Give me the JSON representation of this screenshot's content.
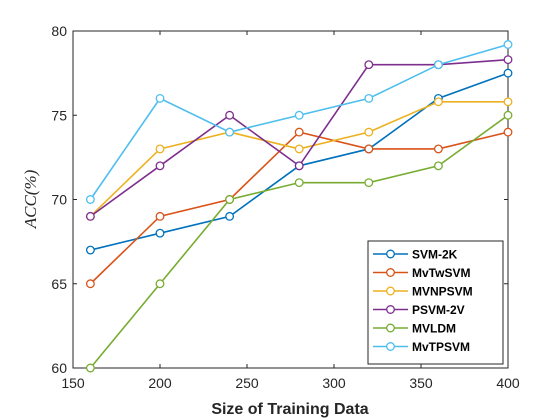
{
  "chart_data": {
    "type": "line",
    "title": "",
    "xlabel": "Size of Training Data",
    "ylabel": "ACC(%)",
    "x": [
      160,
      200,
      240,
      280,
      320,
      360,
      400
    ],
    "xlim": [
      150,
      400
    ],
    "ylim": [
      60,
      80
    ],
    "xticks": [
      150,
      200,
      250,
      300,
      350,
      400
    ],
    "yticks": [
      60,
      65,
      70,
      75,
      80
    ],
    "grid": false,
    "legend_position": "bottom-right",
    "series": [
      {
        "name": "SVM-2K",
        "color": "#0072BD",
        "values": [
          67,
          68,
          69,
          72,
          73,
          76,
          77.5
        ]
      },
      {
        "name": "MvTwSVM",
        "color": "#D95319",
        "values": [
          65,
          69,
          70,
          74,
          73,
          73,
          74
        ]
      },
      {
        "name": "MVNPSVM",
        "color": "#EDB120",
        "values": [
          69,
          73,
          74,
          73,
          74,
          75.8,
          75.8
        ]
      },
      {
        "name": "PSVM-2V",
        "color": "#7E2F8E",
        "values": [
          69,
          72,
          75,
          72,
          78,
          78,
          78.3
        ]
      },
      {
        "name": "MVLDM",
        "color": "#77AC30",
        "values": [
          60,
          65,
          70,
          71,
          71,
          72,
          75
        ]
      },
      {
        "name": "MvTPSVM",
        "color": "#4DBEEE",
        "values": [
          70,
          76,
          74,
          75,
          76,
          78,
          79.2
        ]
      }
    ]
  }
}
